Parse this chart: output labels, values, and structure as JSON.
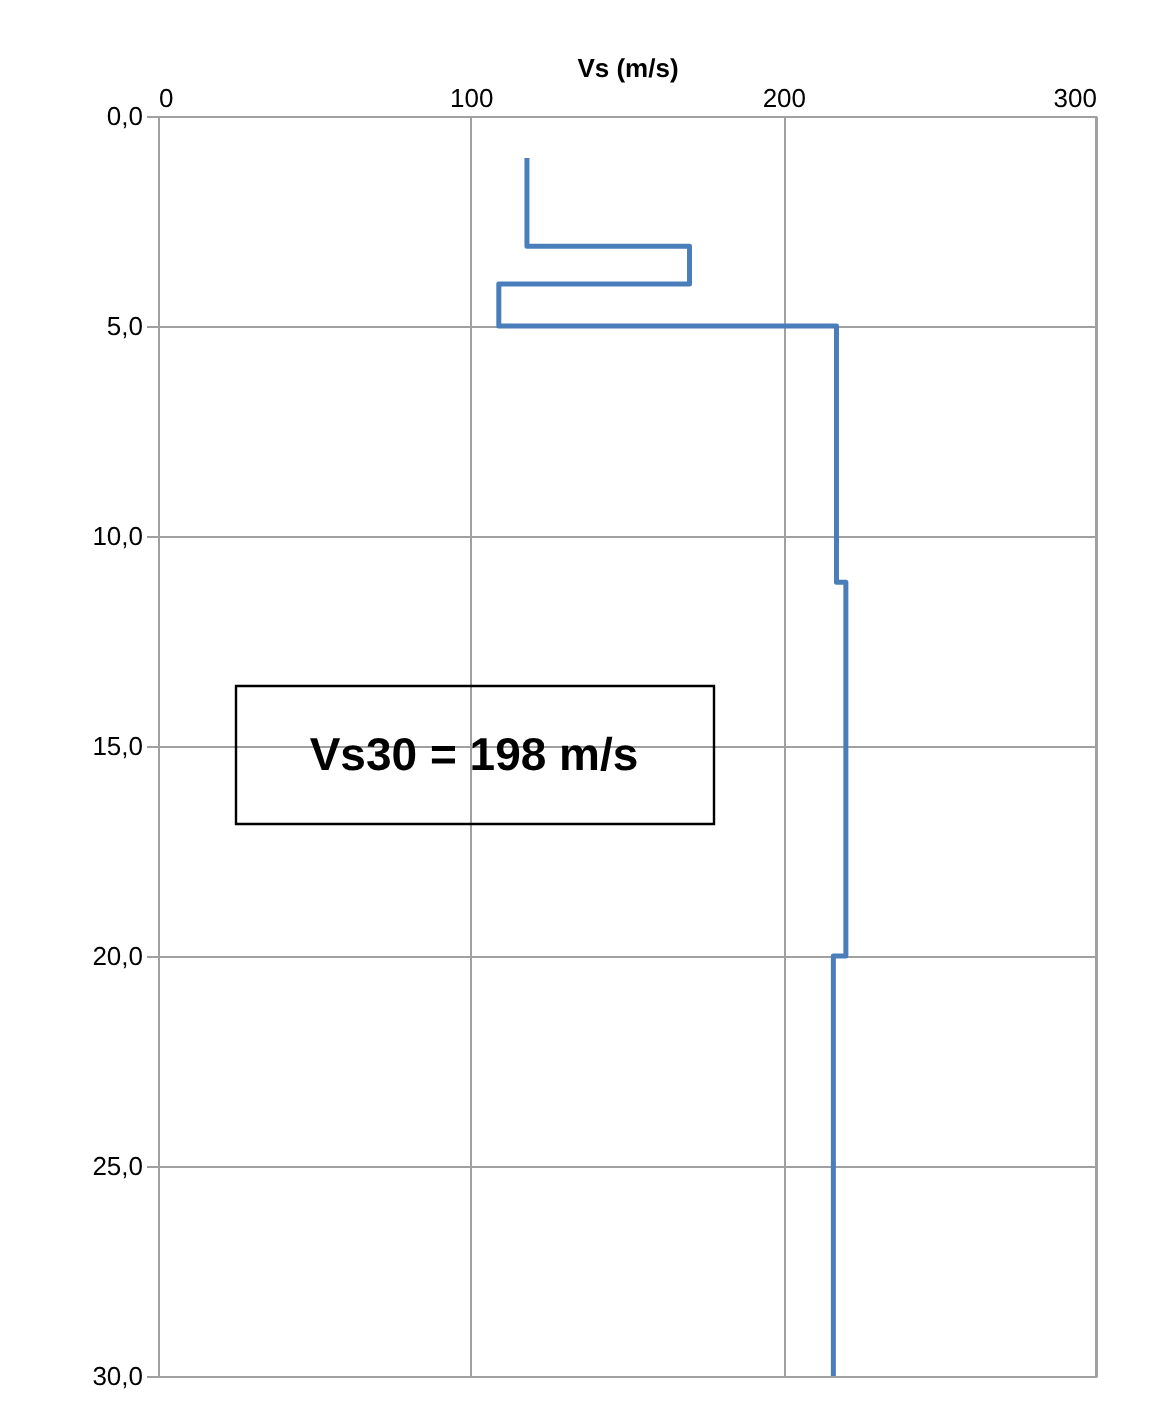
{
  "chart_data": {
    "type": "line",
    "xlabel": "Vs (m/s)",
    "series": [
      {
        "color": "#4a7ebb",
        "x": [
          118,
          118,
          170,
          170,
          109,
          109,
          217,
          217,
          220,
          220,
          216,
          216
        ],
        "values": [
          1.0,
          3.1,
          3.1,
          4.0,
          4.0,
          5.0,
          5.0,
          11.1,
          11.1,
          20.0,
          20.0,
          30.0
        ]
      }
    ],
    "xlim": [
      0,
      300
    ],
    "xticks": [
      0,
      100,
      200,
      300
    ],
    "ylim": [
      30,
      0
    ],
    "yticks": [
      {
        "value": 0,
        "label": "0,0"
      },
      {
        "value": 5,
        "label": "5,0"
      },
      {
        "value": 10,
        "label": "10,0"
      },
      {
        "value": 15,
        "label": "15,0"
      },
      {
        "value": 20,
        "label": "20,0"
      },
      {
        "value": 25,
        "label": "25,0"
      },
      {
        "value": 30,
        "label": "30,0"
      }
    ],
    "annotations": [
      "Vs30 = 198 m/s"
    ],
    "grid": true,
    "marker": "none",
    "line_style": "solid"
  }
}
